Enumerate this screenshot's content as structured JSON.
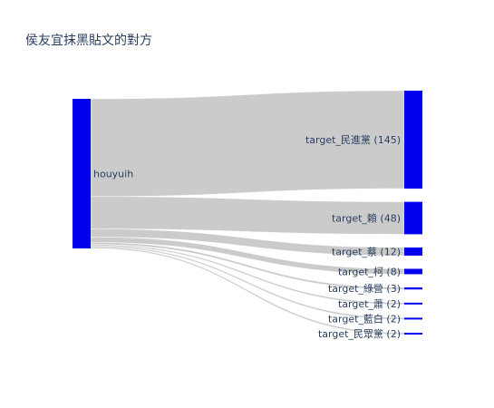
{
  "chart_data": {
    "type": "sankey",
    "title": "侯友宜抹黑貼文的對方",
    "source": {
      "label": "houyuih",
      "color": "#0000ee"
    },
    "links": [
      {
        "target": "target_民進黨",
        "value": 145,
        "label": "target_民進黨 (145)"
      },
      {
        "target": "target_賴",
        "value": 48,
        "label": "target_賴 (48)"
      },
      {
        "target": "target_蔡",
        "value": 12,
        "label": "target_蔡 (12)"
      },
      {
        "target": "target_柯",
        "value": 8,
        "label": "target_柯 (8)"
      },
      {
        "target": "target_綠營",
        "value": 3,
        "label": "target_綠營 (3)"
      },
      {
        "target": "target_蕭",
        "value": 2,
        "label": "target_蕭 (2)"
      },
      {
        "target": "target_藍白",
        "value": 2,
        "label": "target_藍白 (2)"
      },
      {
        "target": "target_民眾黨",
        "value": 2,
        "label": "target_民眾黨 (2)"
      }
    ],
    "node_color": "#0000ee",
    "link_color": "#c8c8c8",
    "text_color": "#2a3f5f"
  }
}
